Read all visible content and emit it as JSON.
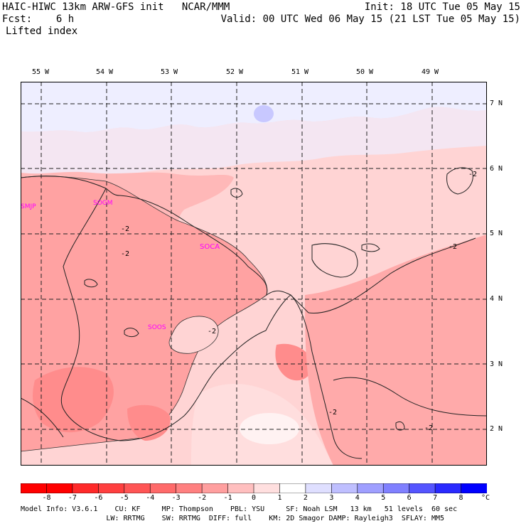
{
  "header": {
    "line1_left": "HAIC-HIWC 13km ARW-GFS init   NCAR/MMM",
    "line1_right": "Init: 18 UTC Tue 05 May 15",
    "line2_left": "Fcst:    6 h",
    "line2_right": "Valid: 00 UTC Wed 06 May 15 (21 LST Tue 05 May 15)",
    "line3_left": "Lifted index"
  },
  "longitudes": [
    "55 W",
    "54 W",
    "53 W",
    "52 W",
    "51 W",
    "50 W",
    "49 W"
  ],
  "latitudes": [
    "7 N",
    "6 N",
    "5 N",
    "4 N",
    "3 N",
    "2 N"
  ],
  "stations": [
    "SMJP",
    "SOGM",
    "SOCA",
    "SOOS"
  ],
  "contour_labels": [
    "-2",
    "-2",
    "-2",
    "-2",
    "-2",
    "-2",
    "-2"
  ],
  "colorbar": {
    "labels": [
      "-8",
      "-7",
      "-6",
      "-5",
      "-4",
      "-3",
      "-2",
      "-1",
      "0",
      "1",
      "2",
      "3",
      "4",
      "5",
      "6",
      "7",
      "8"
    ],
    "unit": "°C",
    "colors": [
      "#ff0000",
      "#ff2a2a",
      "#ff3f3f",
      "#ff5555",
      "#ff6a6a",
      "#ff8080",
      "#ff9f9f",
      "#ffbfbf",
      "#ffdfdf",
      "#ffffff",
      "#dfdfff",
      "#bfbfff",
      "#9f9fff",
      "#8080ff",
      "#5555ff",
      "#2a2aff",
      "#0000ff"
    ]
  },
  "footer": {
    "line1": "Model Info: V3.6.1    CU: KF     MP: Thompson    PBL: YSU     SF: Noah LSM   13 km   51 levels  60 sec",
    "line2": "                    LW: RRTMG    SW: RRTMG  DIFF: full    KM: 2D Smagor DAMP: Rayleigh3  SFLAY: MM5"
  },
  "colors": {
    "ocean": "#eeeeff",
    "light_pink": "#ffd0d0",
    "mid_pink": "#ffaaaa",
    "deep_pink": "#ff8c8c",
    "station": "#ff00ff"
  }
}
